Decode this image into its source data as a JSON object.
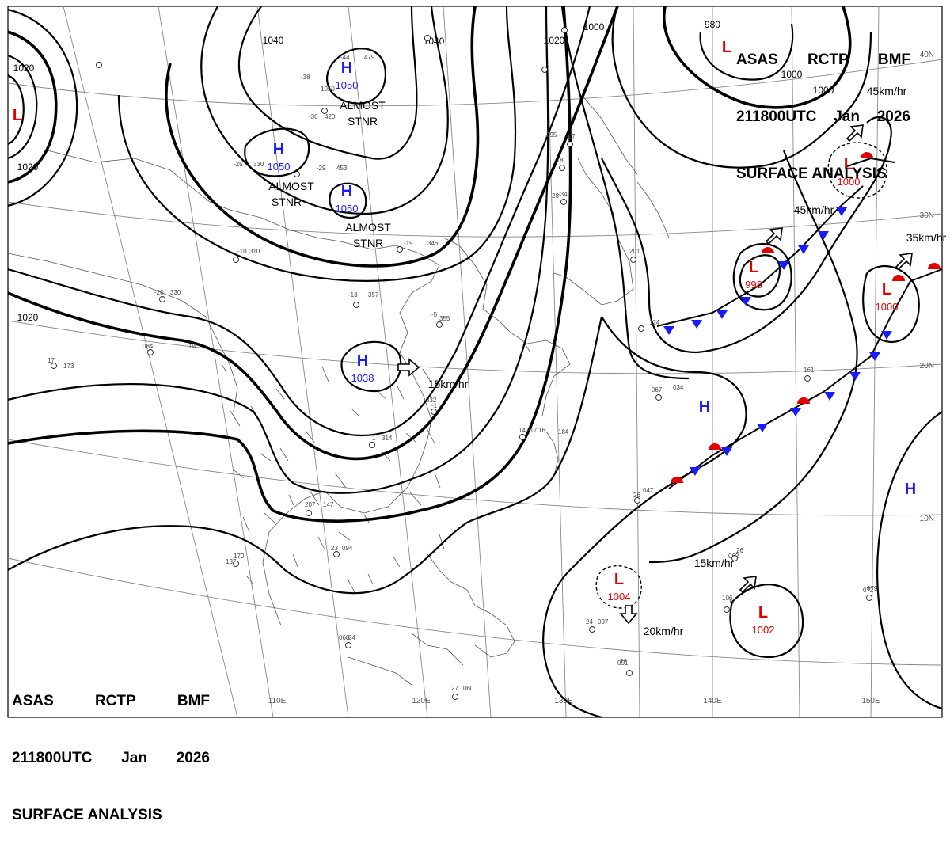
{
  "header_top": {
    "line1": [
      "ASAS",
      "RCTP",
      "BMF"
    ],
    "line2": [
      "211800UTC",
      "Jan",
      "2026"
    ],
    "line3": "SURFACE ANALYSIS"
  },
  "header_bottom": {
    "line1": [
      "ASAS",
      "RCTP",
      "BMF"
    ],
    "line2": [
      "211800UTC",
      "Jan",
      "2026"
    ],
    "line3": "SURFACE ANALYSIS"
  },
  "colors": {
    "high": "#1a1aff",
    "low": "#e00000",
    "isobar": "#000000",
    "coast": "#555555",
    "grid": "#888888"
  },
  "isobar_labels": [
    "1040",
    "1020",
    "1000",
    "980",
    "1040",
    "1020",
    "1000",
    "1020",
    "1020",
    "1000"
  ],
  "pressure_centers": [
    {
      "type": "H",
      "value": "1050"
    },
    {
      "type": "H",
      "value": "1050"
    },
    {
      "type": "H",
      "value": "1050"
    },
    {
      "type": "H",
      "value": "1038"
    },
    {
      "type": "H",
      "value": ""
    },
    {
      "type": "H",
      "value": ""
    },
    {
      "type": "L",
      "value": ""
    },
    {
      "type": "L",
      "value": ""
    },
    {
      "type": "L",
      "value": "1000"
    },
    {
      "type": "L",
      "value": "998"
    },
    {
      "type": "L",
      "value": "1000"
    },
    {
      "type": "L",
      "value": "1004"
    },
    {
      "type": "L",
      "value": "1002"
    }
  ],
  "notes": [
    "ALMOST",
    "STNR",
    "ALMOST",
    "STNR",
    "ALMOST",
    "STNR"
  ],
  "motions": [
    "15km/hr",
    "45km/hr",
    "45km/hr",
    "35km/hr",
    "15km/hr",
    "20km/hr"
  ],
  "lat_labels": [
    "40N",
    "30N",
    "20N",
    "10N"
  ],
  "lon_labels": [
    "110E",
    "120E",
    "130E",
    "140E",
    "150E"
  ],
  "station_labels": [
    "-44",
    "479",
    "1050",
    "-38",
    "-30",
    "420",
    "-29",
    "453",
    "-25",
    "330",
    "-19",
    "346",
    "-13",
    "357",
    "-10",
    "310",
    "-20",
    "330",
    "084",
    "104",
    "17",
    "173",
    "-5",
    "355",
    "-1",
    "332",
    "1",
    "314",
    "14",
    "217",
    "16",
    "184",
    "207",
    "147",
    "170",
    "137",
    "23",
    "094",
    "24",
    "068",
    "27",
    "060",
    "24",
    "097",
    "26",
    "051",
    "26",
    "047",
    "26",
    "062",
    "17",
    "106",
    "072",
    "079",
    "067",
    "034",
    "161",
    "124",
    "201",
    "-18",
    "-34",
    "28",
    "-17",
    "295"
  ]
}
